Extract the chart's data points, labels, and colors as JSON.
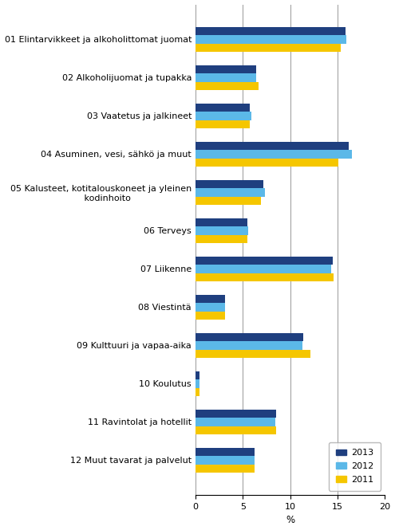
{
  "categories": [
    "01 Elintarvikkeet ja alkoholittomat juomat",
    "02 Alkoholijuomat ja tupakka",
    "03 Vaatetus ja jalkineet",
    "04 Asuminen, vesi, sähkö ja muut",
    "05 Kalusteet, kotitalouskoneet ja yleinen\n     kodinhoito",
    "06 Terveys",
    "07 Liikenne",
    "08 Viestintä",
    "09 Kulttuuri ja vapaa-aika",
    "10 Koulutus",
    "11 Ravintolat ja hotellit",
    "12 Muut tavarat ja palvelut"
  ],
  "values_2013": [
    15.8,
    6.4,
    5.7,
    16.2,
    7.2,
    5.5,
    14.5,
    3.1,
    11.4,
    0.4,
    8.5,
    6.2
  ],
  "values_2012": [
    15.9,
    6.4,
    5.9,
    16.5,
    7.3,
    5.6,
    14.3,
    3.1,
    11.3,
    0.4,
    8.4,
    6.2
  ],
  "values_2011": [
    15.3,
    6.7,
    5.7,
    15.1,
    6.9,
    5.5,
    14.6,
    3.1,
    12.1,
    0.4,
    8.5,
    6.2
  ],
  "color_2013": "#1F3F7F",
  "color_2012": "#5BB8E8",
  "color_2011": "#F5C600",
  "xlabel": "%",
  "xlim": [
    0,
    20
  ],
  "xticks": [
    0,
    5,
    10,
    15,
    20
  ],
  "bar_height": 0.22,
  "figsize": [
    4.95,
    6.65
  ],
  "dpi": 100,
  "tick_fontsize": 8.0,
  "label_fontsize": 8.5
}
